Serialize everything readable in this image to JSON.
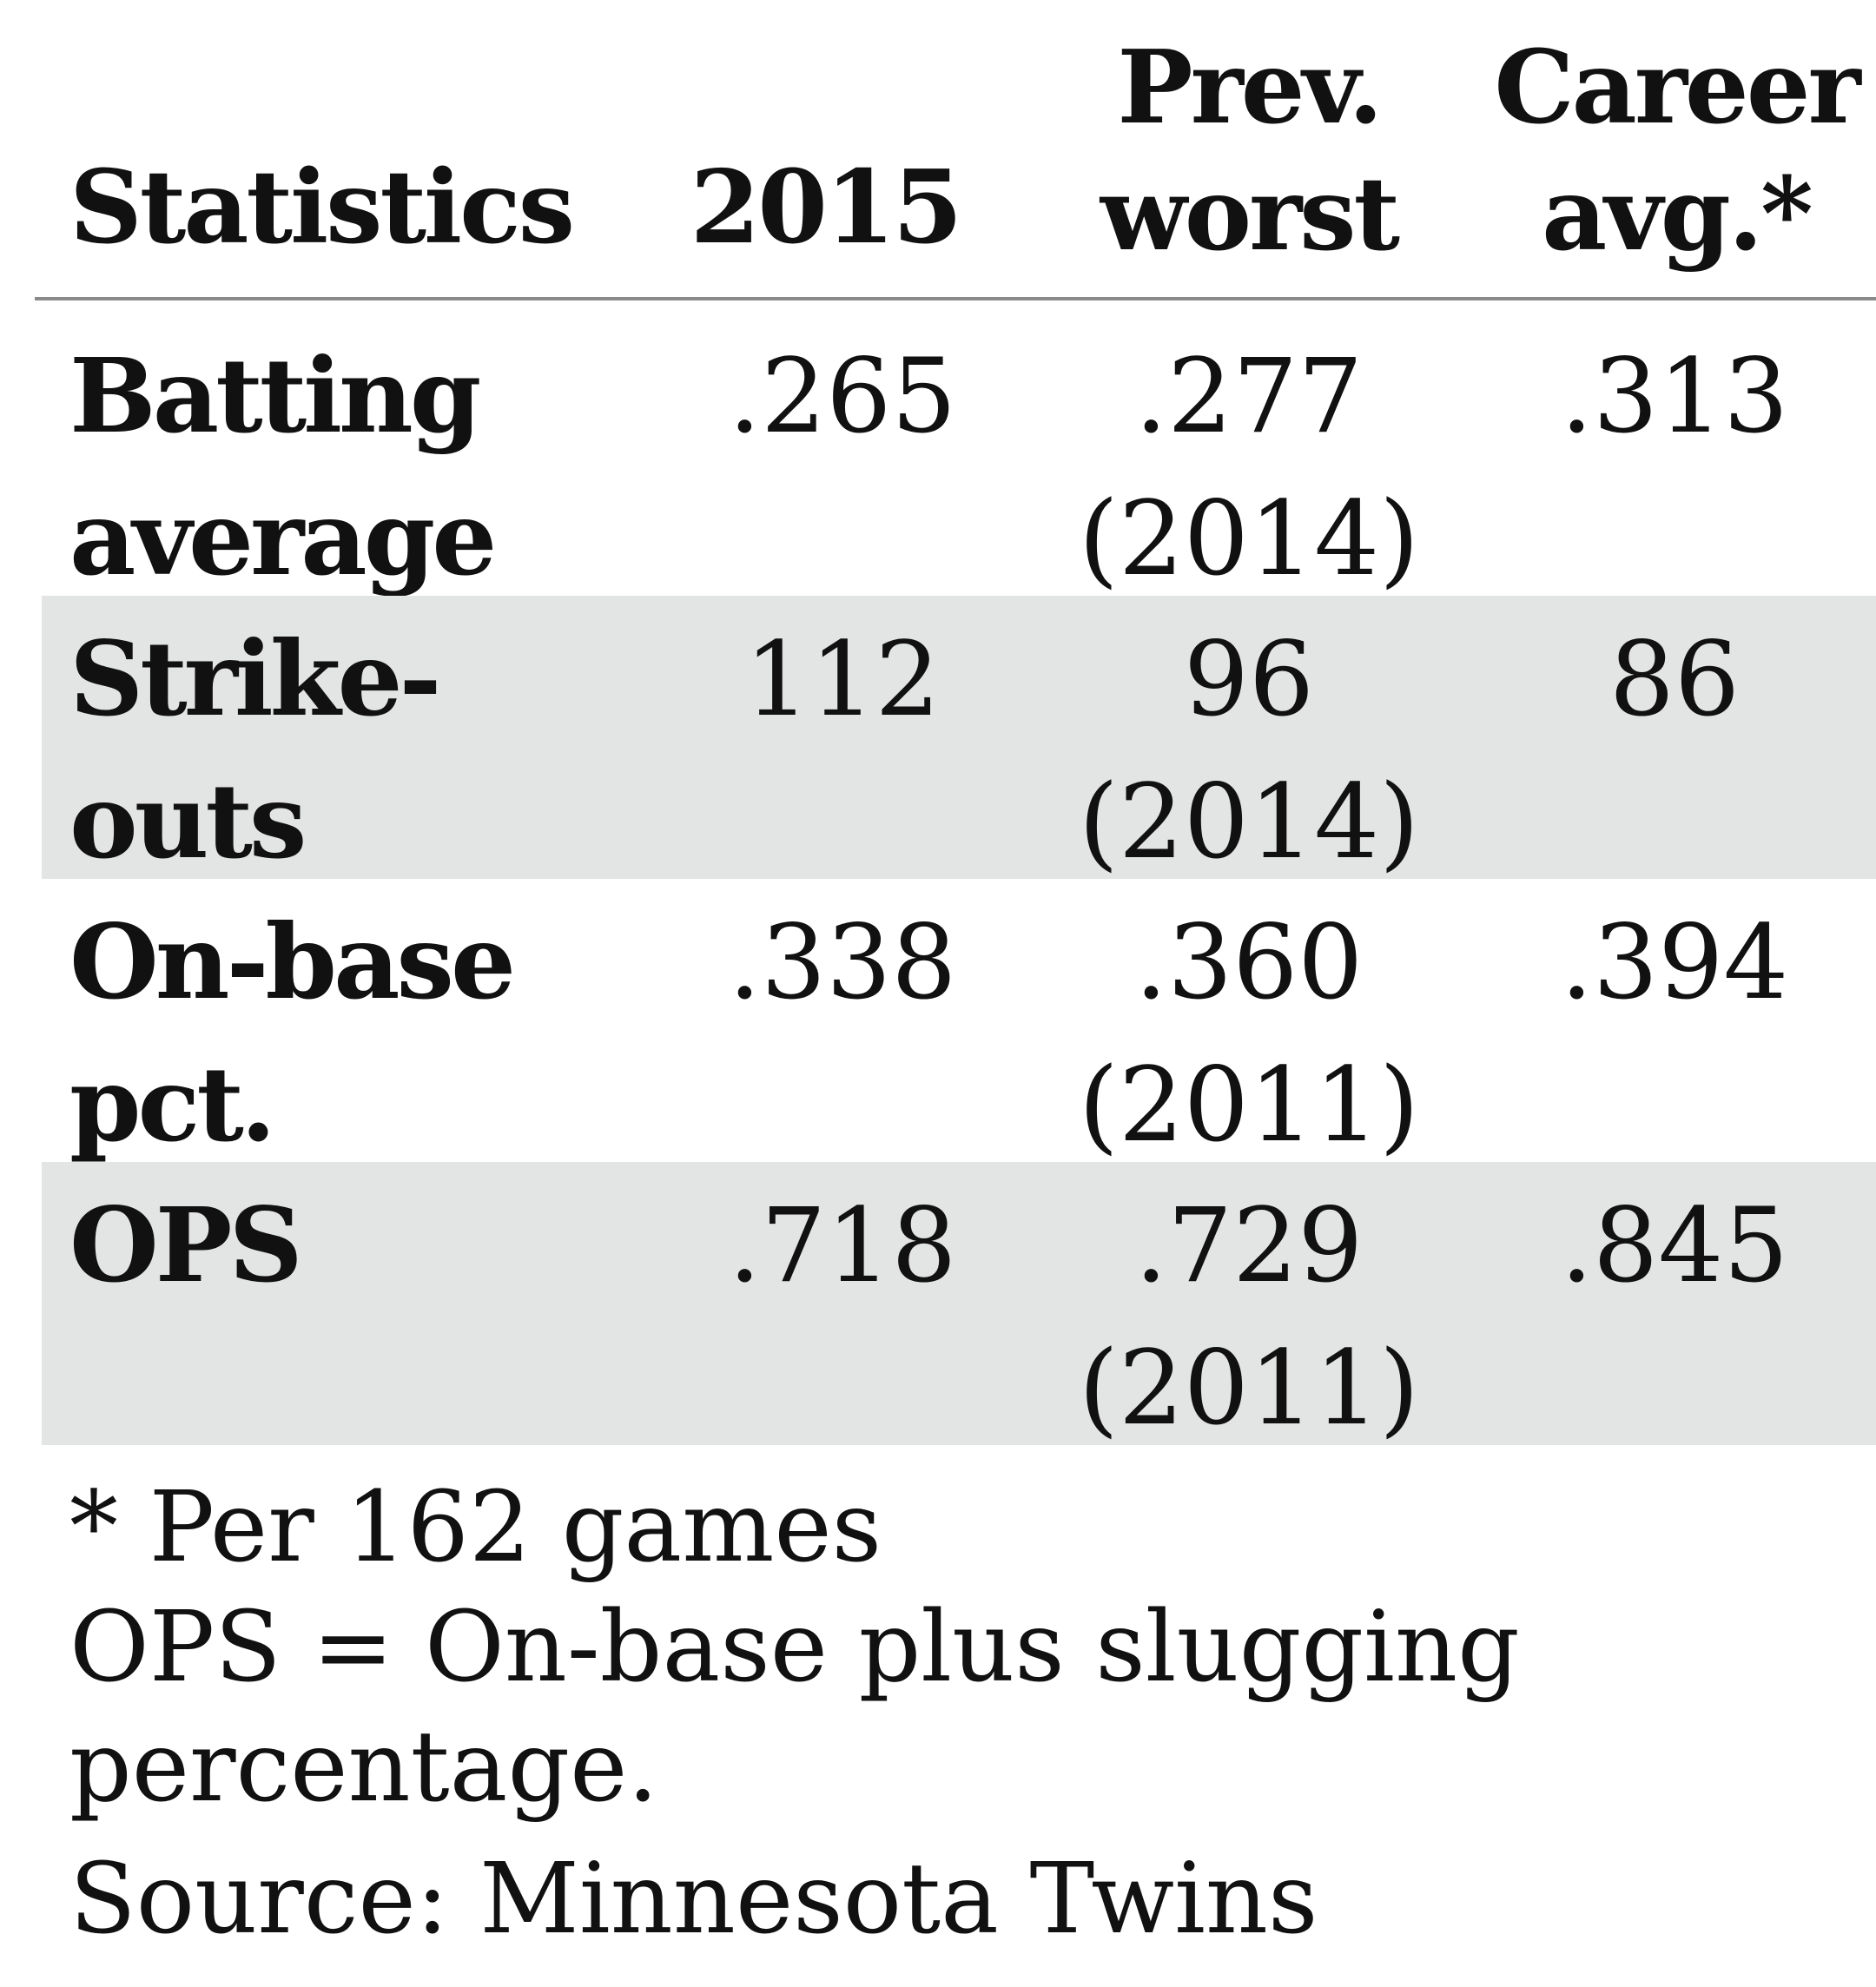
{
  "chart_data": {
    "type": "table",
    "columns": [
      "Statistics",
      "2015",
      "Prev.\nworst",
      "Career\navg.*"
    ],
    "rows": [
      {
        "label": "Batting\naverage",
        "y2015": ".265",
        "prev_worst": ".277\n(2014)",
        "career_avg": ".313"
      },
      {
        "label": "Strike-\nouts",
        "y2015": "112",
        "prev_worst": "96\n(2014)",
        "career_avg": "86"
      },
      {
        "label": "On-base\npct.",
        "y2015": ".338",
        "prev_worst": ".360\n(2011)",
        "career_avg": ".394"
      },
      {
        "label": "OPS",
        "y2015": ".718",
        "prev_worst": ".729\n(2011)",
        "career_avg": ".845"
      }
    ],
    "row_shading": [
      "#ffffff",
      "#e3e4e4",
      "#ffffff",
      "#e3e4e4"
    ],
    "rule_color": "#8a8a8a"
  },
  "notes": {
    "footnote": "* Per 162 games",
    "definition": "OPS = On-base plus slugging\npercentage.",
    "source": "Source: Minnesota Twins"
  }
}
